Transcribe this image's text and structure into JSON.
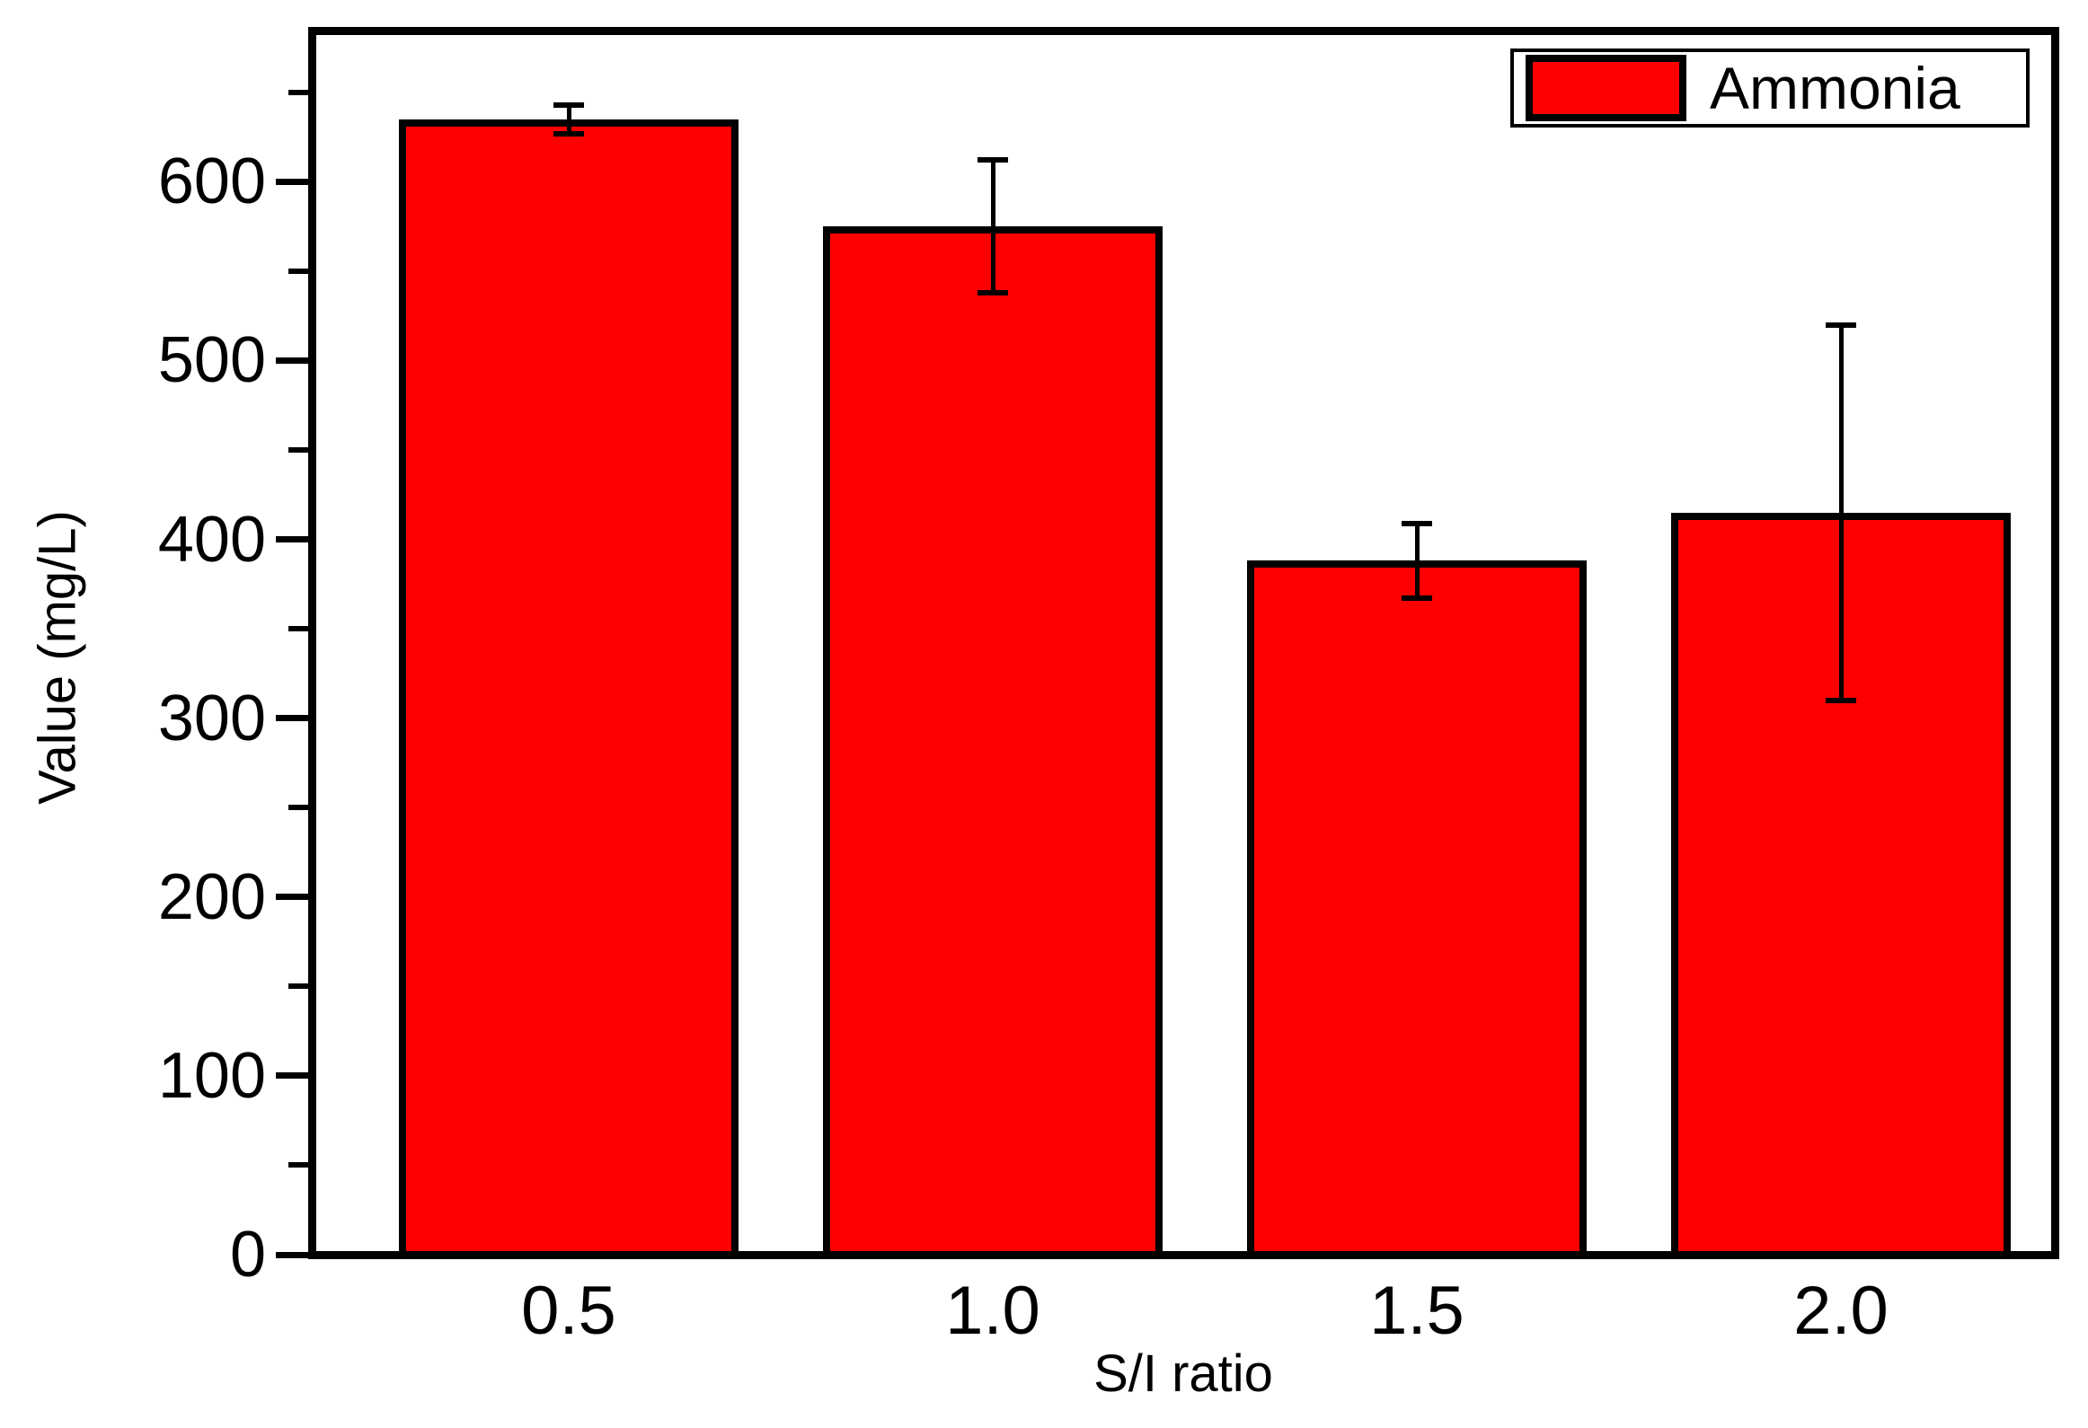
{
  "figure": {
    "background_color": "#ffffff",
    "frame_color": "#000000",
    "text_color": "#000000"
  },
  "chart_data": {
    "type": "bar",
    "title": "",
    "xlabel": "S/I ratio",
    "ylabel": "Value (mg/L)",
    "categories": [
      "0.5",
      "1.0",
      "1.5",
      "2.0"
    ],
    "series": [
      {
        "name": "Ammonia",
        "color": "#ff0000",
        "values": [
          635,
          575,
          388,
          415
        ],
        "errors": [
          8,
          37,
          21,
          105
        ]
      }
    ],
    "ylim": [
      0,
      682
    ],
    "y_major_ticks": [
      0,
      100,
      200,
      300,
      400,
      500,
      600
    ],
    "y_tick_labels": [
      "0",
      "100",
      "200",
      "300",
      "400",
      "500",
      "600"
    ],
    "y_minor_ticks": [
      50,
      150,
      250,
      350,
      450,
      550,
      650
    ],
    "grid": false,
    "error_bars": true,
    "legend": {
      "position": "top-right",
      "entries": [
        {
          "label": "Ammonia",
          "color": "#ff0000"
        }
      ]
    }
  }
}
